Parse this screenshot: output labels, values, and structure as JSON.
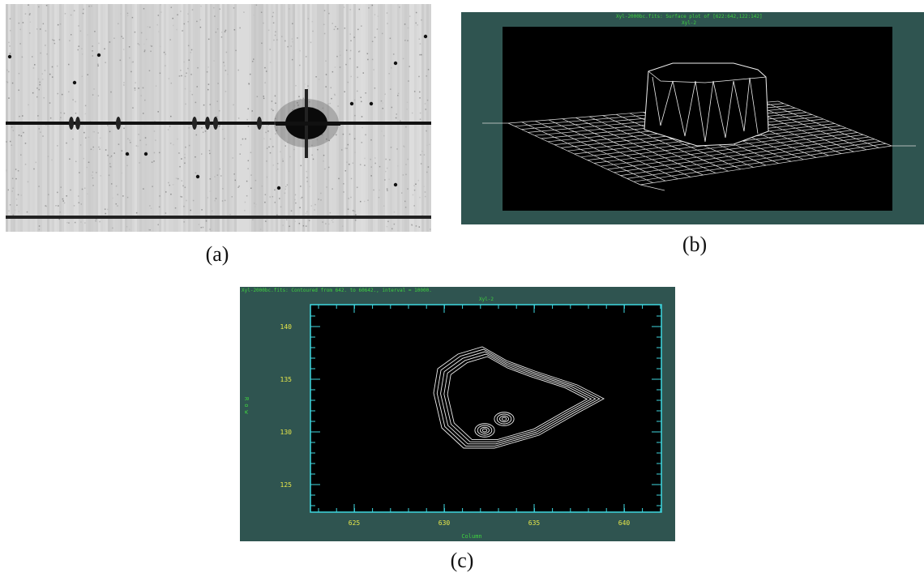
{
  "panels": [
    {
      "label": "(a)"
    },
    {
      "label": "(b)",
      "title": "Xyl-2000bc.fits: Surface plot of [622:642,122:142]",
      "subtitle": "Xyl-2"
    },
    {
      "label": "(c)",
      "title": "Xyl-2000bc.fits: Contoured from 642. to 60642., interval = 10000.",
      "subtitle": "Xyl-2",
      "x_label": "Column",
      "y_label": "Row",
      "x_ticks": [
        625,
        630,
        635,
        640
      ],
      "y_ticks": [
        140,
        135,
        130,
        125
      ]
    }
  ]
}
